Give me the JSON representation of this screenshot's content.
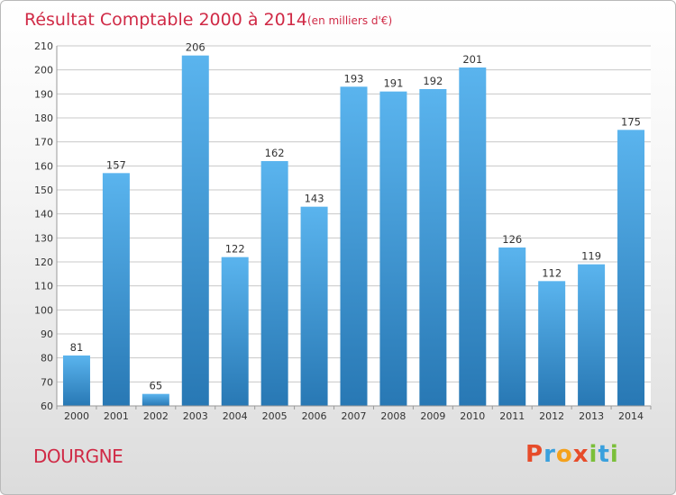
{
  "colors": {
    "title": "#d02a46",
    "bar_light": "#5ab4ee",
    "bar_dark": "#2878b4",
    "grid": "#c8c8c8"
  },
  "header": {
    "title": "Résultat Comptable 2000 à 2014",
    "subtitle": "(en milliers d'€)"
  },
  "footer": {
    "commune": "DOURGNE",
    "logo_letters": [
      {
        "char": "P",
        "color": "#e74c2a"
      },
      {
        "char": "r",
        "color": "#3aa0dd"
      },
      {
        "char": "o",
        "color": "#f4a11c"
      },
      {
        "char": "x",
        "color": "#e74c2a"
      },
      {
        "char": "i",
        "color": "#7bbf3a"
      },
      {
        "char": "t",
        "color": "#3aa0dd"
      },
      {
        "char": "i",
        "color": "#7bbf3a"
      }
    ]
  },
  "chart_data": {
    "type": "bar",
    "title": "Résultat Comptable 2000 à 2014",
    "subtitle": "(en milliers d'€)",
    "categories": [
      "2000",
      "2001",
      "2002",
      "2003",
      "2004",
      "2005",
      "2006",
      "2007",
      "2008",
      "2009",
      "2010",
      "2011",
      "2012",
      "2013",
      "2014"
    ],
    "values": [
      81,
      157,
      65,
      206,
      122,
      162,
      143,
      193,
      191,
      192,
      201,
      126,
      112,
      119,
      175
    ],
    "ylim": [
      60,
      210
    ],
    "yticks": [
      60,
      70,
      80,
      90,
      100,
      110,
      120,
      130,
      140,
      150,
      160,
      170,
      180,
      190,
      200,
      210
    ],
    "xlabel": "",
    "ylabel": "",
    "grid": true
  }
}
